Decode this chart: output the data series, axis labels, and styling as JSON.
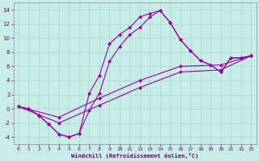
{
  "xlabel": "Windchill (Refroidissement éolien,°C)",
  "xlim": [
    -0.5,
    23.5
  ],
  "ylim": [
    -5,
    15
  ],
  "yticks": [
    -4,
    -2,
    0,
    2,
    4,
    6,
    8,
    10,
    12,
    14
  ],
  "xticks": [
    0,
    1,
    2,
    3,
    4,
    5,
    6,
    7,
    8,
    9,
    10,
    11,
    12,
    13,
    14,
    15,
    16,
    17,
    18,
    19,
    20,
    21,
    22,
    23
  ],
  "bg_color": "#c8ede8",
  "grid_color": "#a8d8d0",
  "line_color": "#990099",
  "curve1_x": [
    0,
    1,
    2,
    3,
    4,
    5,
    6,
    7,
    8,
    9,
    10,
    11,
    12,
    13,
    14,
    15,
    16,
    17,
    18,
    19,
    20,
    21,
    22,
    23
  ],
  "curve1_y": [
    0.3,
    0.0,
    -1.0,
    -2.2,
    -3.6,
    -4.0,
    -3.5,
    2.2,
    4.7,
    9.2,
    10.5,
    11.5,
    13.0,
    13.5,
    13.9,
    12.2,
    9.8,
    8.2,
    6.8,
    6.2,
    5.2,
    7.2,
    7.2,
    7.5
  ],
  "curve2_x": [
    0,
    1,
    2,
    3,
    4,
    5,
    6,
    7,
    8,
    9,
    10,
    11,
    12,
    13,
    14,
    15,
    16,
    17,
    18,
    19,
    20,
    21,
    22,
    23
  ],
  "curve2_y": [
    0.3,
    0.0,
    -0.9,
    -2.2,
    -3.6,
    -4.0,
    -3.5,
    -0.2,
    2.2,
    6.7,
    8.8,
    10.5,
    11.5,
    13.0,
    13.9,
    12.2,
    9.8,
    8.2,
    6.8,
    6.2,
    5.2,
    7.2,
    7.2,
    7.5
  ],
  "line3_x": [
    0,
    4,
    8,
    12,
    16,
    20,
    23
  ],
  "line3_y": [
    0.3,
    -1.2,
    1.5,
    4.0,
    6.0,
    6.2,
    7.5
  ],
  "line4_x": [
    0,
    4,
    8,
    12,
    16,
    20,
    23
  ],
  "line4_y": [
    0.3,
    -2.0,
    0.5,
    3.0,
    5.2,
    5.5,
    7.5
  ],
  "markersize": 2.5,
  "linewidth": 0.8
}
